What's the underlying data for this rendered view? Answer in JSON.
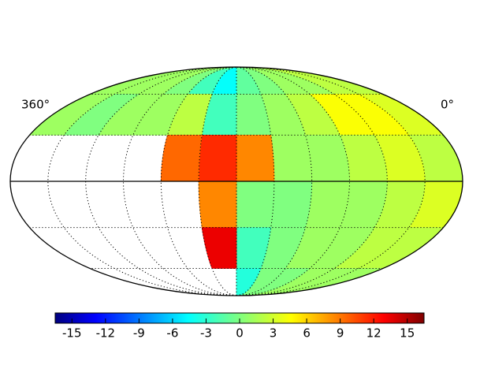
{
  "chart_data": {
    "type": "mollweide",
    "x": [
      15,
      45,
      75,
      105,
      135,
      165,
      195,
      225,
      255,
      285,
      315,
      345
    ],
    "y": [
      75,
      45,
      15,
      -15,
      -45,
      -75
    ],
    "values": [
      [
        2,
        2,
        1,
        1,
        0,
        -1,
        -4,
        -2,
        0,
        1,
        1,
        1
      ],
      [
        3,
        4,
        4,
        2,
        1,
        0,
        -2,
        2,
        1,
        1,
        0,
        1
      ],
      [
        2,
        3,
        2,
        1,
        1,
        8,
        11,
        9,
        null,
        null,
        null,
        null
      ],
      [
        3,
        2,
        1,
        1,
        0,
        0,
        8,
        null,
        null,
        null,
        null,
        null
      ],
      [
        2,
        2,
        1,
        1,
        0,
        -2,
        13,
        null,
        null,
        null,
        null,
        null
      ],
      [
        1,
        1,
        1,
        0,
        0,
        -3,
        null,
        null,
        null,
        null,
        null,
        null
      ]
    ],
    "xlim": [
      0,
      360
    ],
    "ylim": [
      -90,
      90
    ],
    "xticks": [
      {
        "value": 360,
        "label": "360°"
      },
      {
        "value": 0,
        "label": "0°"
      }
    ],
    "clim": [
      -16.5,
      16.5
    ],
    "cticks": [
      -15,
      -12,
      -9,
      -6,
      -3,
      0,
      3,
      6,
      9,
      12,
      15
    ],
    "colormap": "jet"
  }
}
